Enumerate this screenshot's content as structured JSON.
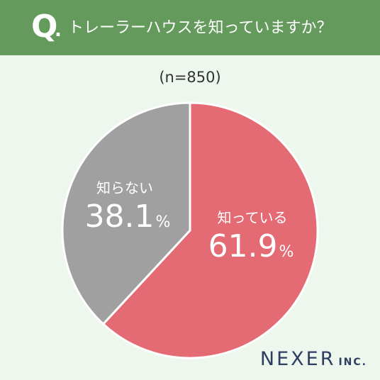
{
  "header": {
    "q_letter": "Q",
    "q_dot": ".",
    "question": "トレーラーハウスを知っていますか？",
    "bg_color": "#649a5c"
  },
  "sample_size_label": "(n=850)",
  "chart_data": {
    "type": "pie",
    "title": "トレーラーハウスを知っていますか？",
    "n": 850,
    "slices": [
      {
        "label": "知っている",
        "value": 61.9,
        "value_text": "61.9",
        "unit": "%",
        "color": "#e46a74"
      },
      {
        "label": "知らない",
        "value": 38.1,
        "value_text": "38.1",
        "unit": "%",
        "color": "#a0a0a0"
      }
    ],
    "start": "12 o'clock",
    "direction": "clockwise"
  },
  "logo": {
    "main": "NEXER",
    "suffix": "INC."
  }
}
